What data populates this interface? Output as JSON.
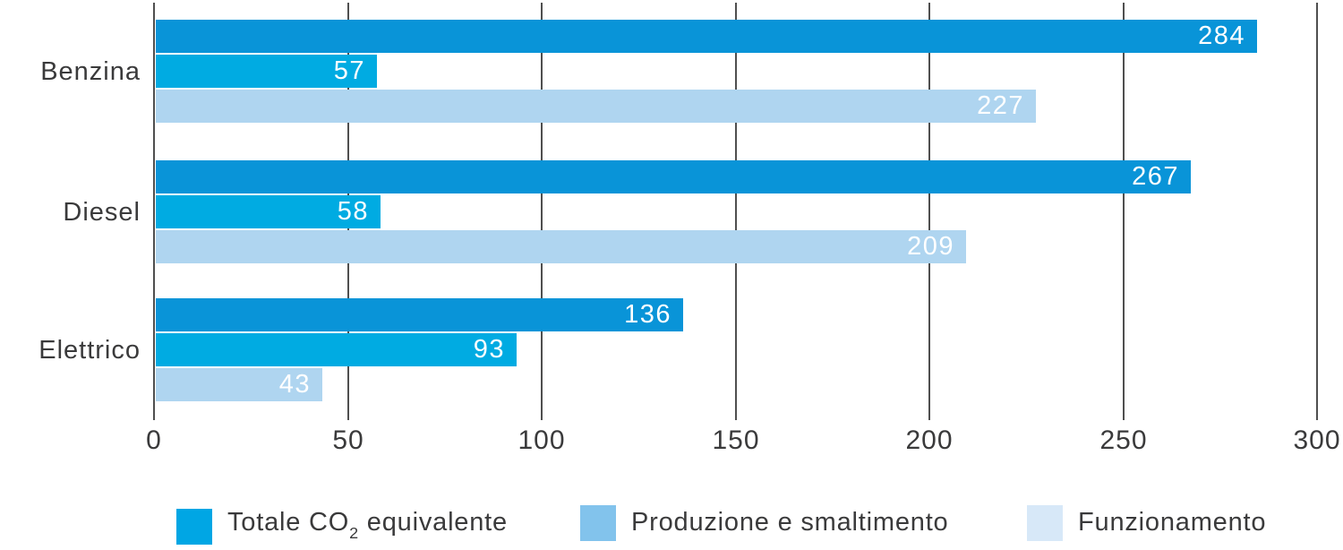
{
  "chart_data": {
    "type": "bar",
    "orientation": "horizontal",
    "title": "",
    "xlabel": "",
    "ylabel": "",
    "categories": [
      "Benzina",
      "Diesel",
      "Elettrico"
    ],
    "series": [
      {
        "name": "Totale CO2 equivalente",
        "color": "#0994d8",
        "values": [
          284,
          267,
          136
        ]
      },
      {
        "name": "Produzione e smaltimento",
        "color": "#00abe2",
        "values": [
          57,
          58,
          93
        ]
      },
      {
        "name": "Funzionamento",
        "color": "#afd5f0",
        "values": [
          227,
          209,
          43
        ]
      }
    ],
    "xlim": [
      0,
      300
    ],
    "xticks": [
      0,
      50,
      100,
      150,
      200,
      250,
      300
    ],
    "grid": true,
    "grid_color": "#4f4f4f",
    "text_color": "#3a3a3b",
    "value_labels_position": "inside-end",
    "value_label_color": "#ffffff",
    "legend_position": "bottom"
  },
  "legend": {
    "items": [
      {
        "label_prefix": "Totale CO",
        "label_sub": "2",
        "label_suffix": " equivalente",
        "color": "#00a6e4"
      },
      {
        "label": "Produzione e smaltimento",
        "color": "#82c3ec"
      },
      {
        "label": "Funzionamento",
        "color": "#d7e8f8"
      }
    ]
  }
}
